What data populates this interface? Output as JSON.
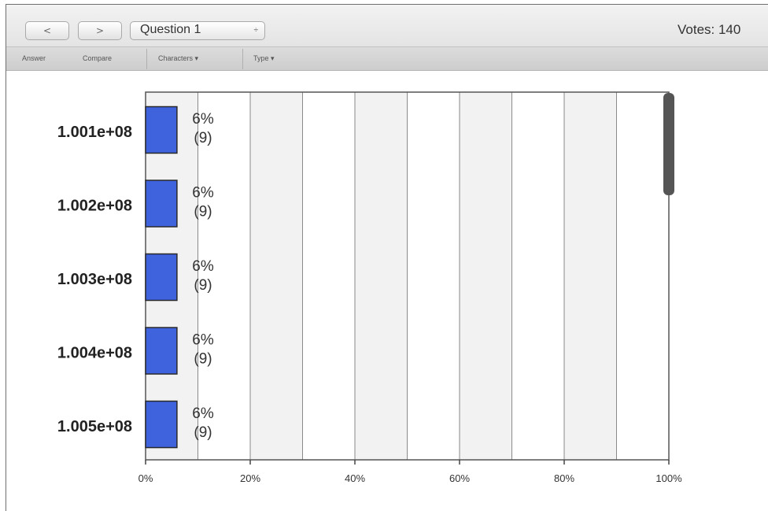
{
  "toolbar": {
    "back_label": "<",
    "forward_label": ">",
    "question_select": "Question 1",
    "select_arrows": "÷",
    "votes_label": "Votes: 140"
  },
  "subtoolbar": {
    "answer": "Answer",
    "compare": "Compare",
    "characters": "Characters ▾",
    "type": "Type ▾"
  },
  "colors": {
    "bar_fill": "#3e63dc",
    "bar_stroke": "#2a2a2a",
    "band_shaded": "#f2f2f2",
    "band_plain": "#ffffff",
    "scrollbar": "#555555"
  },
  "chart_data": {
    "type": "bar",
    "orientation": "horizontal",
    "categories": [
      "1.001e+08",
      "1.002e+08",
      "1.003e+08",
      "1.004e+08",
      "1.005e+08"
    ],
    "values": [
      6,
      6,
      6,
      6,
      6
    ],
    "counts": [
      9,
      9,
      9,
      9,
      9
    ],
    "data_labels": [
      {
        "pct": "6%",
        "count": "(9)"
      },
      {
        "pct": "6%",
        "count": "(9)"
      },
      {
        "pct": "6%",
        "count": "(9)"
      },
      {
        "pct": "6%",
        "count": "(9)"
      },
      {
        "pct": "6%",
        "count": "(9)"
      }
    ],
    "xlim": [
      0,
      100
    ],
    "xticks": [
      0,
      20,
      40,
      60,
      80,
      100
    ],
    "xtick_labels": [
      "0%",
      "20%",
      "40%",
      "60%",
      "80%",
      "100%"
    ],
    "grid": true,
    "title": "",
    "xlabel": "",
    "ylabel": ""
  }
}
